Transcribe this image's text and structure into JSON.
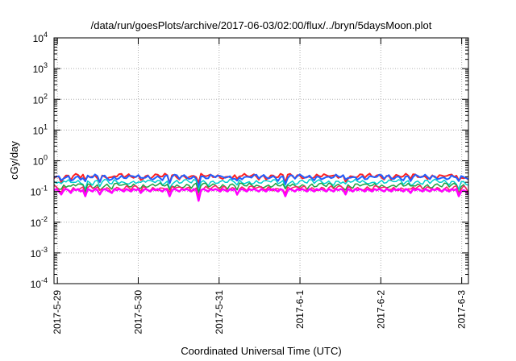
{
  "chart_data": {
    "type": "line",
    "title": "/data/run/goesPlots/archive/2017-06-03/02:00/flux/../bryn/5daysMoon.plot",
    "xlabel": "Coordinated Universal Time (UTC)",
    "ylabel": "cGy/day",
    "yscale": "log",
    "ylim": [
      0.0001,
      10000
    ],
    "y_ticks": [
      {
        "base": "10",
        "exp": "-4"
      },
      {
        "base": "10",
        "exp": "-3"
      },
      {
        "base": "10",
        "exp": "-2"
      },
      {
        "base": "10",
        "exp": "-1"
      },
      {
        "base": "10",
        "exp": "0"
      },
      {
        "base": "10",
        "exp": "1"
      },
      {
        "base": "10",
        "exp": "2"
      },
      {
        "base": "10",
        "exp": "3"
      },
      {
        "base": "10",
        "exp": "4"
      }
    ],
    "xlim": [
      "2017-05-28 23:00",
      "2017-06-03 02:00"
    ],
    "x_ticks": [
      {
        "label": "2017-5-29",
        "t": "2017-05-29"
      },
      {
        "label": "2017-5-30",
        "t": "2017-05-30"
      },
      {
        "label": "2017-5-31",
        "t": "2017-05-31"
      },
      {
        "label": "2017-6-1",
        "t": "2017-06-01"
      },
      {
        "label": "2017-6-2",
        "t": "2017-06-02"
      },
      {
        "label": "2017-6-3",
        "t": "2017-06-03"
      }
    ],
    "grid": true,
    "legend": "none",
    "series": [
      {
        "color": "#ff00ff",
        "typical": 0.11,
        "samples": [
          0.11,
          0.12,
          0.1,
          0.08,
          0.11,
          0.12,
          0.11,
          0.09,
          0.12,
          0.11,
          0.12,
          0.1,
          0.11,
          0.07,
          0.12,
          0.11,
          0.1,
          0.12,
          0.11,
          0.08,
          0.11,
          0.12,
          0.11,
          0.1,
          0.09,
          0.12,
          0.11,
          0.12,
          0.11,
          0.1,
          0.12,
          0.11,
          0.1,
          0.12,
          0.11,
          0.12,
          0.09,
          0.11,
          0.12,
          0.11,
          0.1,
          0.12,
          0.11,
          0.12,
          0.11,
          0.1,
          0.12,
          0.11,
          0.07,
          0.11,
          0.12,
          0.11,
          0.1,
          0.12,
          0.11,
          0.12,
          0.11,
          0.1,
          0.12,
          0.11,
          0.05,
          0.11,
          0.12,
          0.11,
          0.1,
          0.12,
          0.11,
          0.12,
          0.11,
          0.1,
          0.12,
          0.11,
          0.1,
          0.12,
          0.11,
          0.12,
          0.08,
          0.11,
          0.12,
          0.11,
          0.1,
          0.12,
          0.11,
          0.12,
          0.11,
          0.1,
          0.12,
          0.11,
          0.1,
          0.12,
          0.11,
          0.12,
          0.11,
          0.1,
          0.12,
          0.11,
          0.07,
          0.11,
          0.12,
          0.11,
          0.1,
          0.12,
          0.11,
          0.12,
          0.11,
          0.1,
          0.12,
          0.11,
          0.1,
          0.12,
          0.11,
          0.12,
          0.11,
          0.1,
          0.12,
          0.11,
          0.1,
          0.12,
          0.11,
          0.12,
          0.11,
          0.08,
          0.12,
          0.11,
          0.1,
          0.12,
          0.11,
          0.12,
          0.11,
          0.1,
          0.12,
          0.11,
          0.1,
          0.12,
          0.11,
          0.12,
          0.11,
          0.1,
          0.12,
          0.11,
          0.1,
          0.12,
          0.11,
          0.12,
          0.11,
          0.1,
          0.12,
          0.11,
          0.09,
          0.12,
          0.11,
          0.12,
          0.11,
          0.1,
          0.12,
          0.11,
          0.1,
          0.12,
          0.11,
          0.12,
          0.11,
          0.1,
          0.12,
          0.11,
          0.1,
          0.12,
          0.11,
          0.12,
          0.07,
          0.1,
          0.11,
          0.1,
          0.08
        ]
      },
      {
        "color": "#ff2060",
        "typical": 0.13
      },
      {
        "color": "#20a040",
        "typical": 0.16
      },
      {
        "color": "#00d0d0",
        "typical": 0.21
      },
      {
        "color": "#2060ff",
        "typical": 0.3
      },
      {
        "color": "#ff2020",
        "typical": 0.32
      }
    ]
  }
}
